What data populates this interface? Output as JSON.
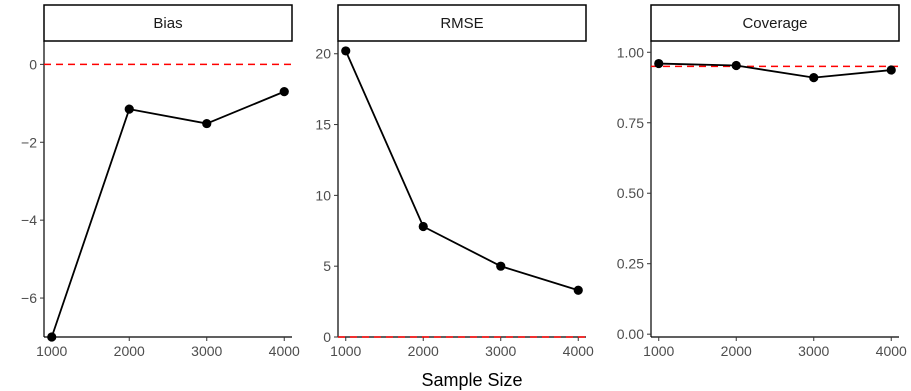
{
  "chart_data": {
    "type": "line",
    "xlabel": "Sample Size",
    "x_ticks": [
      1000,
      2000,
      3000,
      4000
    ],
    "line_color": "#000000",
    "ref_line_color": "#ff0000",
    "panels": [
      {
        "title": "Bias",
        "x": [
          1000,
          2000,
          3000,
          4000
        ],
        "y": [
          -7.0,
          -1.15,
          -1.52,
          -0.7
        ],
        "ylim": [
          -7.0,
          0.6
        ],
        "y_ticks": [
          -6,
          -4,
          -2,
          0
        ],
        "y_tick_labels": [
          "−6",
          "−4",
          "−2",
          "0"
        ],
        "reference_line": 0
      },
      {
        "title": "RMSE",
        "x": [
          1000,
          2000,
          3000,
          4000
        ],
        "y": [
          20.2,
          7.8,
          5.0,
          3.3
        ],
        "ylim": [
          0,
          20.9
        ],
        "y_ticks": [
          0,
          5,
          10,
          15,
          20
        ],
        "y_tick_labels": [
          "0",
          "5",
          "10",
          "15",
          "20"
        ],
        "reference_line": 0
      },
      {
        "title": "Coverage",
        "x": [
          1000,
          2000,
          3000,
          4000
        ],
        "y": [
          0.96,
          0.953,
          0.91,
          0.937
        ],
        "ylim": [
          -0.01,
          1.04
        ],
        "y_ticks": [
          0.0,
          0.25,
          0.5,
          0.75,
          1.0
        ],
        "y_tick_labels": [
          "0.00",
          "0.25",
          "0.50",
          "0.75",
          "1.00"
        ],
        "reference_line": 0.95
      }
    ]
  }
}
